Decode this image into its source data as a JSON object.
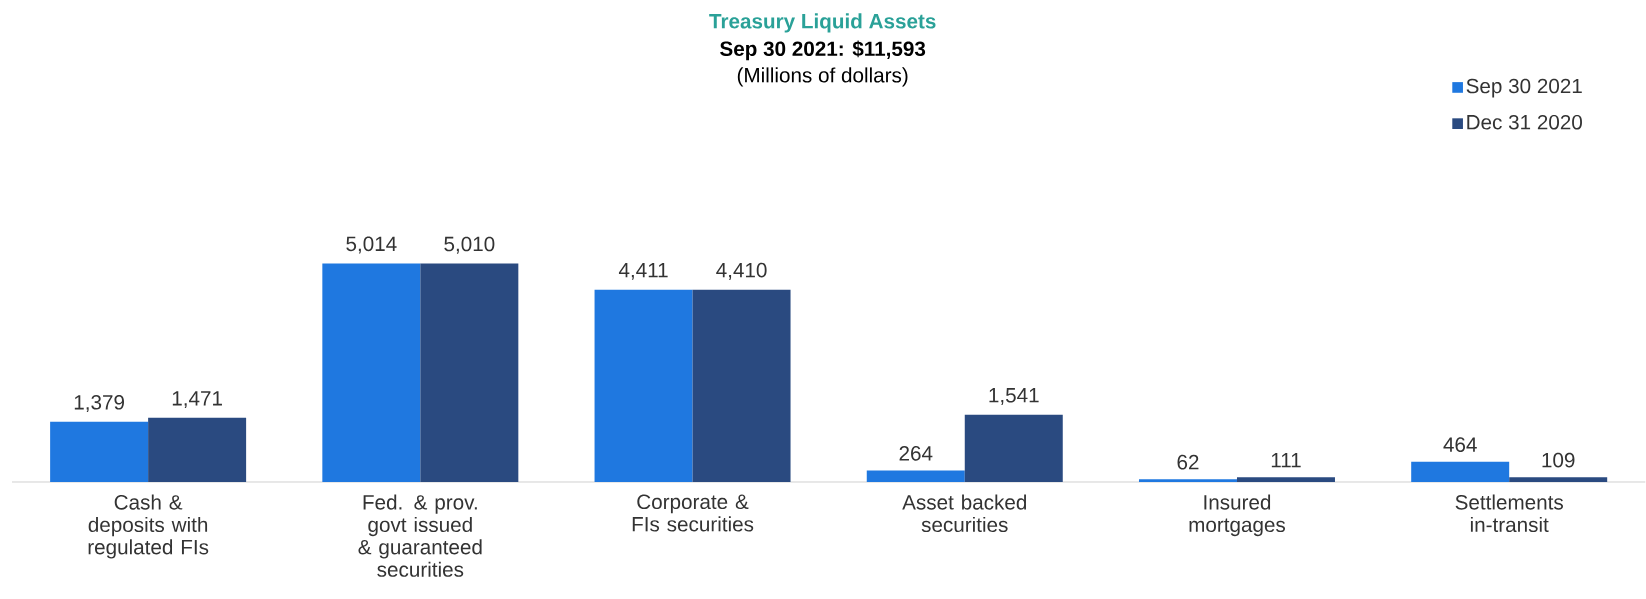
{
  "chart_data": {
    "type": "bar",
    "title": "Treasury Liquid Assets",
    "subtitle": "Sep 30 2021: $11,593",
    "annotations": [
      "(Millions of dollars)"
    ],
    "categories": [
      "Cash & deposits with regulated FIs",
      "Fed. & prov. govt issued & guaranteed securities",
      "Corporate & FIs securities",
      "Asset backed securities",
      "Insured mortgages",
      "Settlements in-transit"
    ],
    "series": [
      {
        "name": "Sep 30 2021",
        "color": "#1f78e0",
        "values": [
          1379,
          5014,
          4411,
          264,
          62,
          464
        ],
        "value_labels": [
          "1,379",
          "5,014",
          "4,411",
          "264",
          "62",
          "464"
        ]
      },
      {
        "name": "Dec 31 2020",
        "color": "#2a4a80",
        "values": [
          1471,
          5010,
          4410,
          1541,
          111,
          109
        ],
        "value_labels": [
          "1,471",
          "5,010",
          "4,410",
          "1,541",
          "111",
          "109"
        ]
      }
    ],
    "legend": "top right"
  }
}
